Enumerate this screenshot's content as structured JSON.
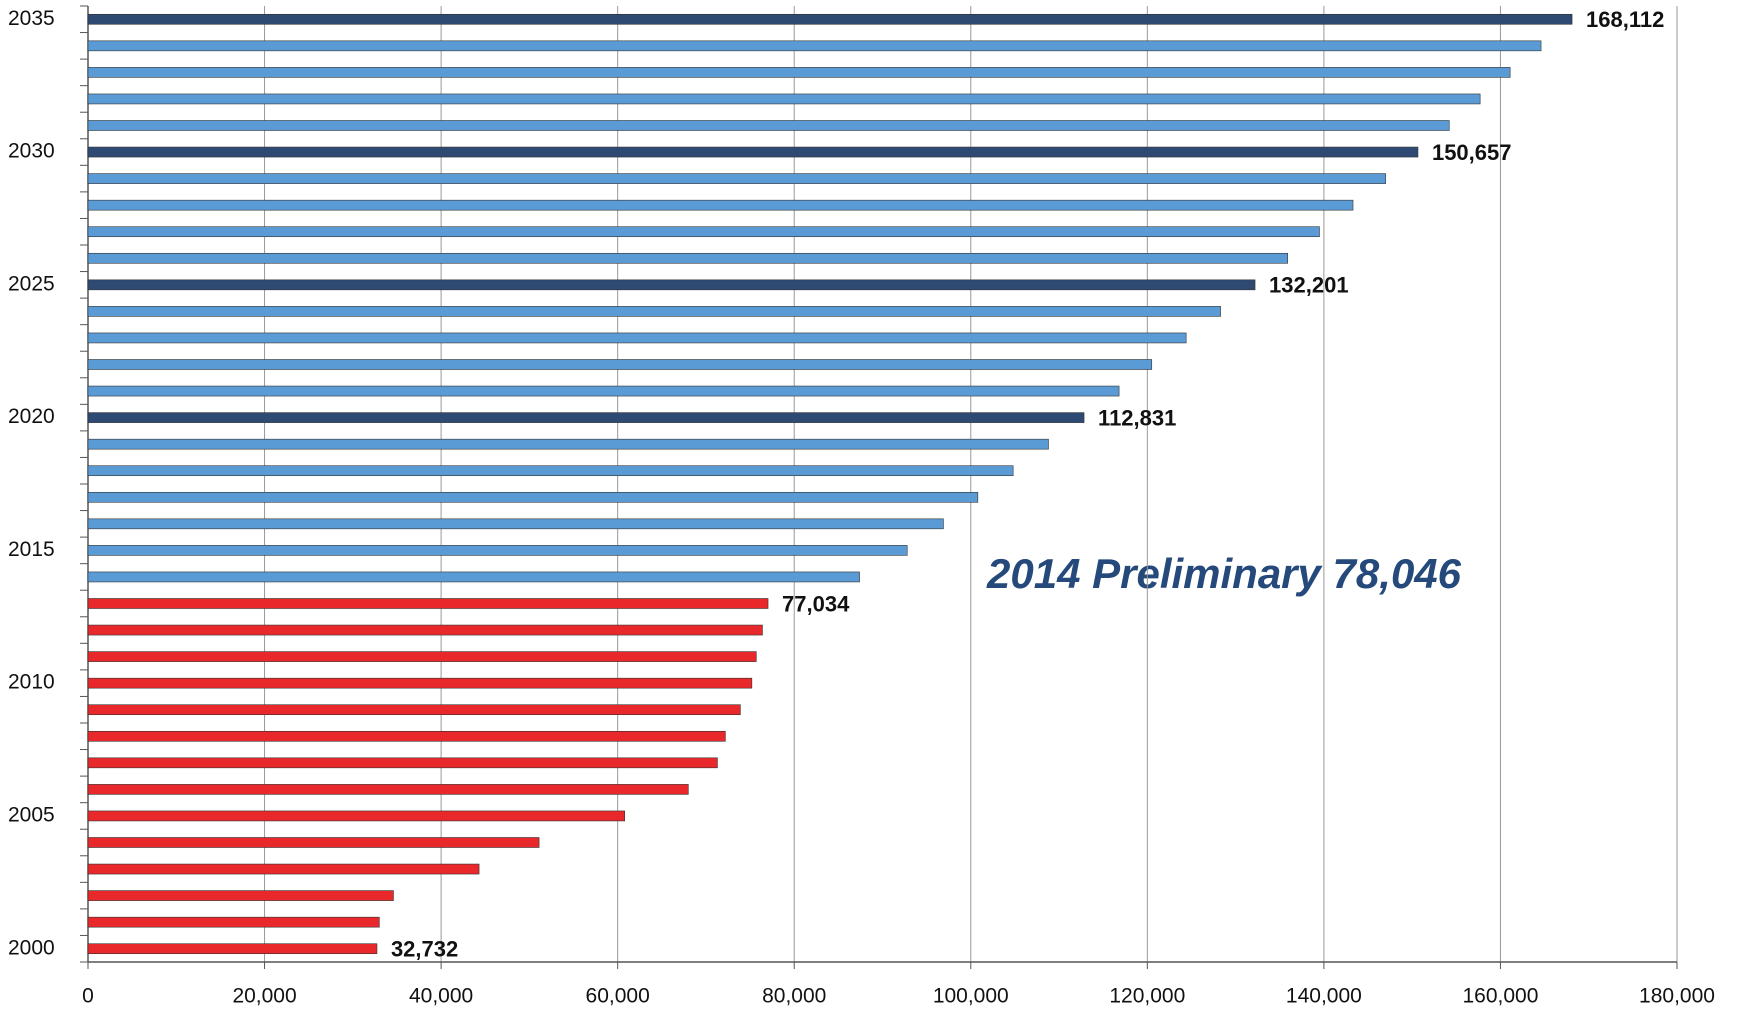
{
  "chart_data": {
    "type": "hbar",
    "categories": [
      "2000",
      null,
      null,
      null,
      null,
      "2005",
      null,
      null,
      null,
      null,
      "2010",
      null,
      null,
      null,
      null,
      "2015",
      null,
      null,
      null,
      null,
      "2020",
      null,
      null,
      null,
      null,
      "2025",
      null,
      null,
      null,
      null,
      "2030",
      null,
      null,
      null,
      null,
      "2035"
    ],
    "values": [
      32732,
      33000,
      34600,
      44300,
      51100,
      60800,
      68000,
      71300,
      72200,
      73900,
      75200,
      75700,
      76400,
      77034,
      87400,
      92800,
      96900,
      100800,
      104800,
      108800,
      112831,
      116800,
      120500,
      124400,
      128300,
      132201,
      135900,
      139500,
      143300,
      147000,
      150657,
      154200,
      157700,
      161100,
      164600,
      168112
    ],
    "value_labels": [
      "32,732",
      null,
      null,
      null,
      null,
      null,
      null,
      null,
      null,
      null,
      null,
      null,
      null,
      "77,034",
      null,
      null,
      null,
      null,
      null,
      null,
      "112,831",
      null,
      null,
      null,
      null,
      "132,201",
      null,
      null,
      null,
      null,
      "150,657",
      null,
      null,
      null,
      null,
      "168,112"
    ],
    "colors": [
      "#e8282b",
      "#e8282b",
      "#e8282b",
      "#e8282b",
      "#e8282b",
      "#e8282b",
      "#e8282b",
      "#e8282b",
      "#e8282b",
      "#e8282b",
      "#e8282b",
      "#e8282b",
      "#e8282b",
      "#e8282b",
      "#5b9bd5",
      "#5b9bd5",
      "#5b9bd5",
      "#5b9bd5",
      "#5b9bd5",
      "#5b9bd5",
      "#2e4a72",
      "#5b9bd5",
      "#5b9bd5",
      "#5b9bd5",
      "#5b9bd5",
      "#2e4a72",
      "#5b9bd5",
      "#5b9bd5",
      "#5b9bd5",
      "#5b9bd5",
      "#2e4a72",
      "#5b9bd5",
      "#5b9bd5",
      "#5b9bd5",
      "#5b9bd5",
      "#2e4a72"
    ],
    "xlim": [
      0,
      180000
    ],
    "xticks": [
      0,
      {
        "value": 20000,
        "label": "20,000"
      },
      {
        "value": 40000,
        "label": "40,000"
      },
      {
        "value": 60000,
        "label": "60,000"
      },
      {
        "value": 80000,
        "label": "80,000"
      },
      {
        "value": 100000,
        "label": "100,000"
      },
      {
        "value": 120000,
        "label": "120,000"
      },
      {
        "value": 140000,
        "label": "140,000"
      },
      {
        "value": 160000,
        "label": "160,000"
      },
      {
        "value": 180000,
        "label": "180,000"
      }
    ],
    "grid": true,
    "annotation": "2014 Preliminary 78,046"
  }
}
